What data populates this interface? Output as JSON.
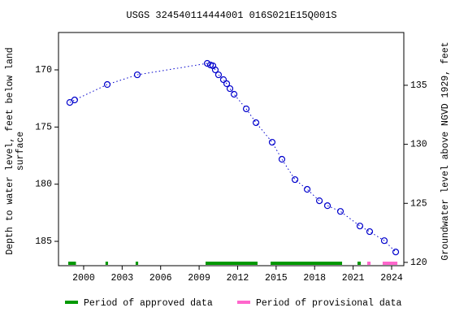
{
  "chart_data": {
    "type": "scatter",
    "title": "USGS 324540114444001 016S021E15Q001S",
    "ylabel": [
      "Depth to water level, feet below land",
      "surface"
    ],
    "y2label": "Groundwater level above NGVD 1929, feet",
    "x": [
      1998.92,
      1999.3,
      2001.84,
      2004.18,
      2009.63,
      2009.88,
      2010.07,
      2010.26,
      2010.51,
      2010.89,
      2011.15,
      2011.4,
      2011.72,
      2012.67,
      2013.43,
      2014.69,
      2015.45,
      2016.47,
      2017.42,
      2018.37,
      2019.0,
      2020.01,
      2021.53,
      2022.29,
      2023.43,
      2024.32
    ],
    "values": [
      172.85,
      172.63,
      171.28,
      170.43,
      169.43,
      169.57,
      169.64,
      170.0,
      170.43,
      170.85,
      171.21,
      171.64,
      172.13,
      173.41,
      174.62,
      176.33,
      177.82,
      179.6,
      180.45,
      181.45,
      181.88,
      182.38,
      183.66,
      184.15,
      184.94,
      185.93
    ],
    "color": "#0000cc",
    "xlim": [
      1998.04,
      2024.95
    ],
    "xticks": [
      2000,
      2003,
      2006,
      2009,
      2012,
      2015,
      2018,
      2021,
      2024
    ],
    "ylim": [
      187.13,
      166.73
    ],
    "yticks": [
      170,
      175,
      180,
      185
    ],
    "y2lim": [
      119.72,
      139.47
    ],
    "y2ticks": [
      120,
      125,
      130,
      135
    ],
    "periods": [
      {
        "name": "Period of approved data",
        "color": "#009900",
        "ranges": [
          [
            1998.8,
            1999.4
          ],
          [
            2001.7,
            2001.9
          ],
          [
            2004.05,
            2004.25
          ],
          [
            2009.5,
            2013.55
          ],
          [
            2014.57,
            2020.14
          ],
          [
            2021.34,
            2021.6
          ]
        ]
      },
      {
        "name": "Period of provisional data",
        "color": "#ff66cc",
        "ranges": [
          [
            2022.1,
            2022.36
          ],
          [
            2023.3,
            2024.45
          ]
        ]
      }
    ]
  }
}
